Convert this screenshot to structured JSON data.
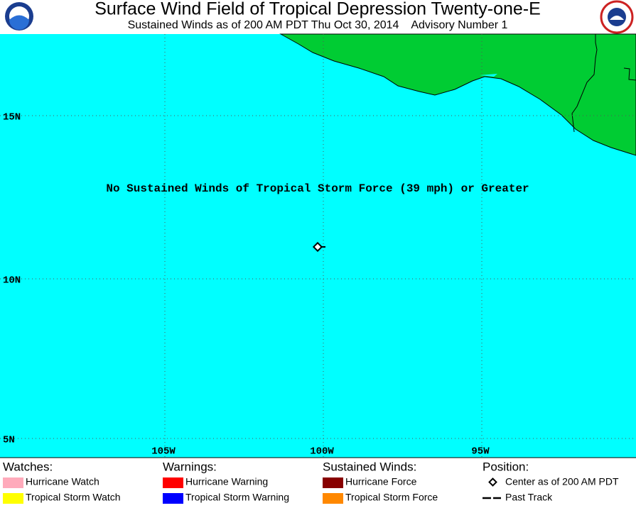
{
  "header": {
    "title": "Surface Wind Field of Tropical Depression Twenty-one-E",
    "subtitle": "Sustained Winds as of 200 AM PDT Thu Oct 30, 2014    Advisory Number 1"
  },
  "map": {
    "lat_labels": [
      "15N",
      "10N",
      "5N"
    ],
    "lon_labels": [
      "105W",
      "100W",
      "95W"
    ],
    "message": "No Sustained Winds of Tropical Storm Force (39 mph) or Greater"
  },
  "legend": [
    {
      "heading": "Watches:",
      "items": [
        {
          "label": "Hurricane Watch",
          "color": "#ffaabb"
        },
        {
          "label": "Tropical Storm Watch",
          "color": "#ffff00"
        }
      ]
    },
    {
      "heading": "Warnings:",
      "items": [
        {
          "label": "Hurricane Warning",
          "color": "#ff0000"
        },
        {
          "label": "Tropical Storm Warning",
          "color": "#0000ff"
        }
      ]
    },
    {
      "heading": "Sustained Winds:",
      "items": [
        {
          "label": "Hurricane Force",
          "color": "#880000"
        },
        {
          "label": "Tropical Storm Force",
          "color": "#ff8800"
        }
      ]
    },
    {
      "heading": "Position:",
      "items": [
        {
          "label": "Center as of 200 AM PDT"
        },
        {
          "label": "Past Track"
        }
      ]
    }
  ]
}
